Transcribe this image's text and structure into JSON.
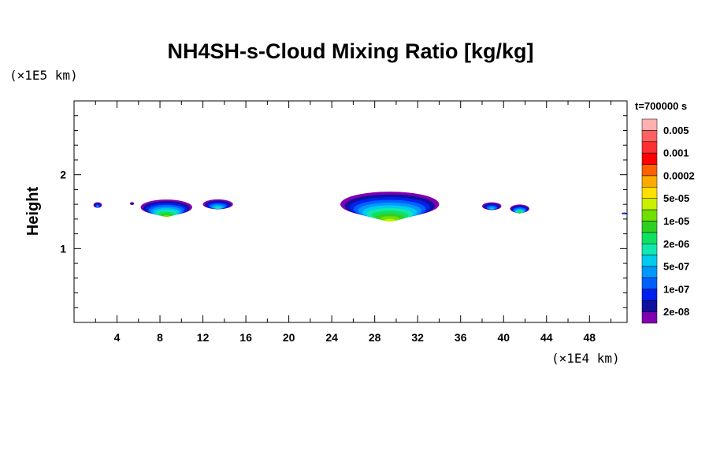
{
  "chart_data": {
    "type": "contour",
    "title": "NH4SH-s-Cloud Mixing Ratio [kg/kg]",
    "xlabel": "",
    "ylabel": "Height",
    "x_unit": "(×1E4 km)",
    "y_unit": "(×1E5 km)",
    "time_label": "t=700000 s",
    "xlim": [
      0,
      51.5
    ],
    "ylim": [
      0,
      3
    ],
    "x_ticks": [
      "4",
      "8",
      "12",
      "16",
      "20",
      "24",
      "28",
      "32",
      "36",
      "40",
      "44",
      "48"
    ],
    "x_tick_values": [
      4,
      8,
      12,
      16,
      20,
      24,
      28,
      32,
      36,
      40,
      44,
      48
    ],
    "y_ticks": [
      "1",
      "2"
    ],
    "y_tick_values": [
      1,
      2
    ],
    "x_minor_step": 2,
    "y_minor_step": 0.2,
    "colorbar": {
      "colors": [
        "#ffb0b0",
        "#ff6060",
        "#ff3030",
        "#ff0000",
        "#ff6000",
        "#ffaa00",
        "#ffe000",
        "#c8f000",
        "#70e000",
        "#30d020",
        "#10e060",
        "#10e8b0",
        "#00ccee",
        "#0098ff",
        "#0060ff",
        "#0020ee",
        "#1010a0",
        "#8000b0"
      ],
      "labels": [
        "0.005",
        "0.001",
        "0.0002",
        "5e-05",
        "1e-05",
        "2e-06",
        "5e-07",
        "1e-07",
        "2e-08"
      ]
    },
    "clouds": [
      {
        "x": [
          1.8,
          2.6
        ],
        "y_top": 1.63,
        "y_bottom": 1.55,
        "max_level": 13
      },
      {
        "x": [
          5.2,
          5.6
        ],
        "y_top": 1.63,
        "y_bottom": 1.59,
        "max_level": 15
      },
      {
        "x": [
          6.2,
          11.0
        ],
        "y_top": 1.67,
        "y_bottom": 1.45,
        "max_level": 8
      },
      {
        "x": [
          12.0,
          14.8
        ],
        "y_top": 1.67,
        "y_bottom": 1.53,
        "max_level": 11
      },
      {
        "x": [
          24.8,
          34.0
        ],
        "y_top": 1.78,
        "y_bottom": 1.42,
        "max_level": 7
      },
      {
        "x": [
          38.0,
          39.8
        ],
        "y_top": 1.63,
        "y_bottom": 1.52,
        "max_level": 12
      },
      {
        "x": [
          40.6,
          42.4
        ],
        "y_top": 1.6,
        "y_bottom": 1.48,
        "max_level": 9
      },
      {
        "x": [
          51.0,
          51.5
        ],
        "y_top": 1.49,
        "y_bottom": 1.46,
        "max_level": 12
      }
    ]
  }
}
